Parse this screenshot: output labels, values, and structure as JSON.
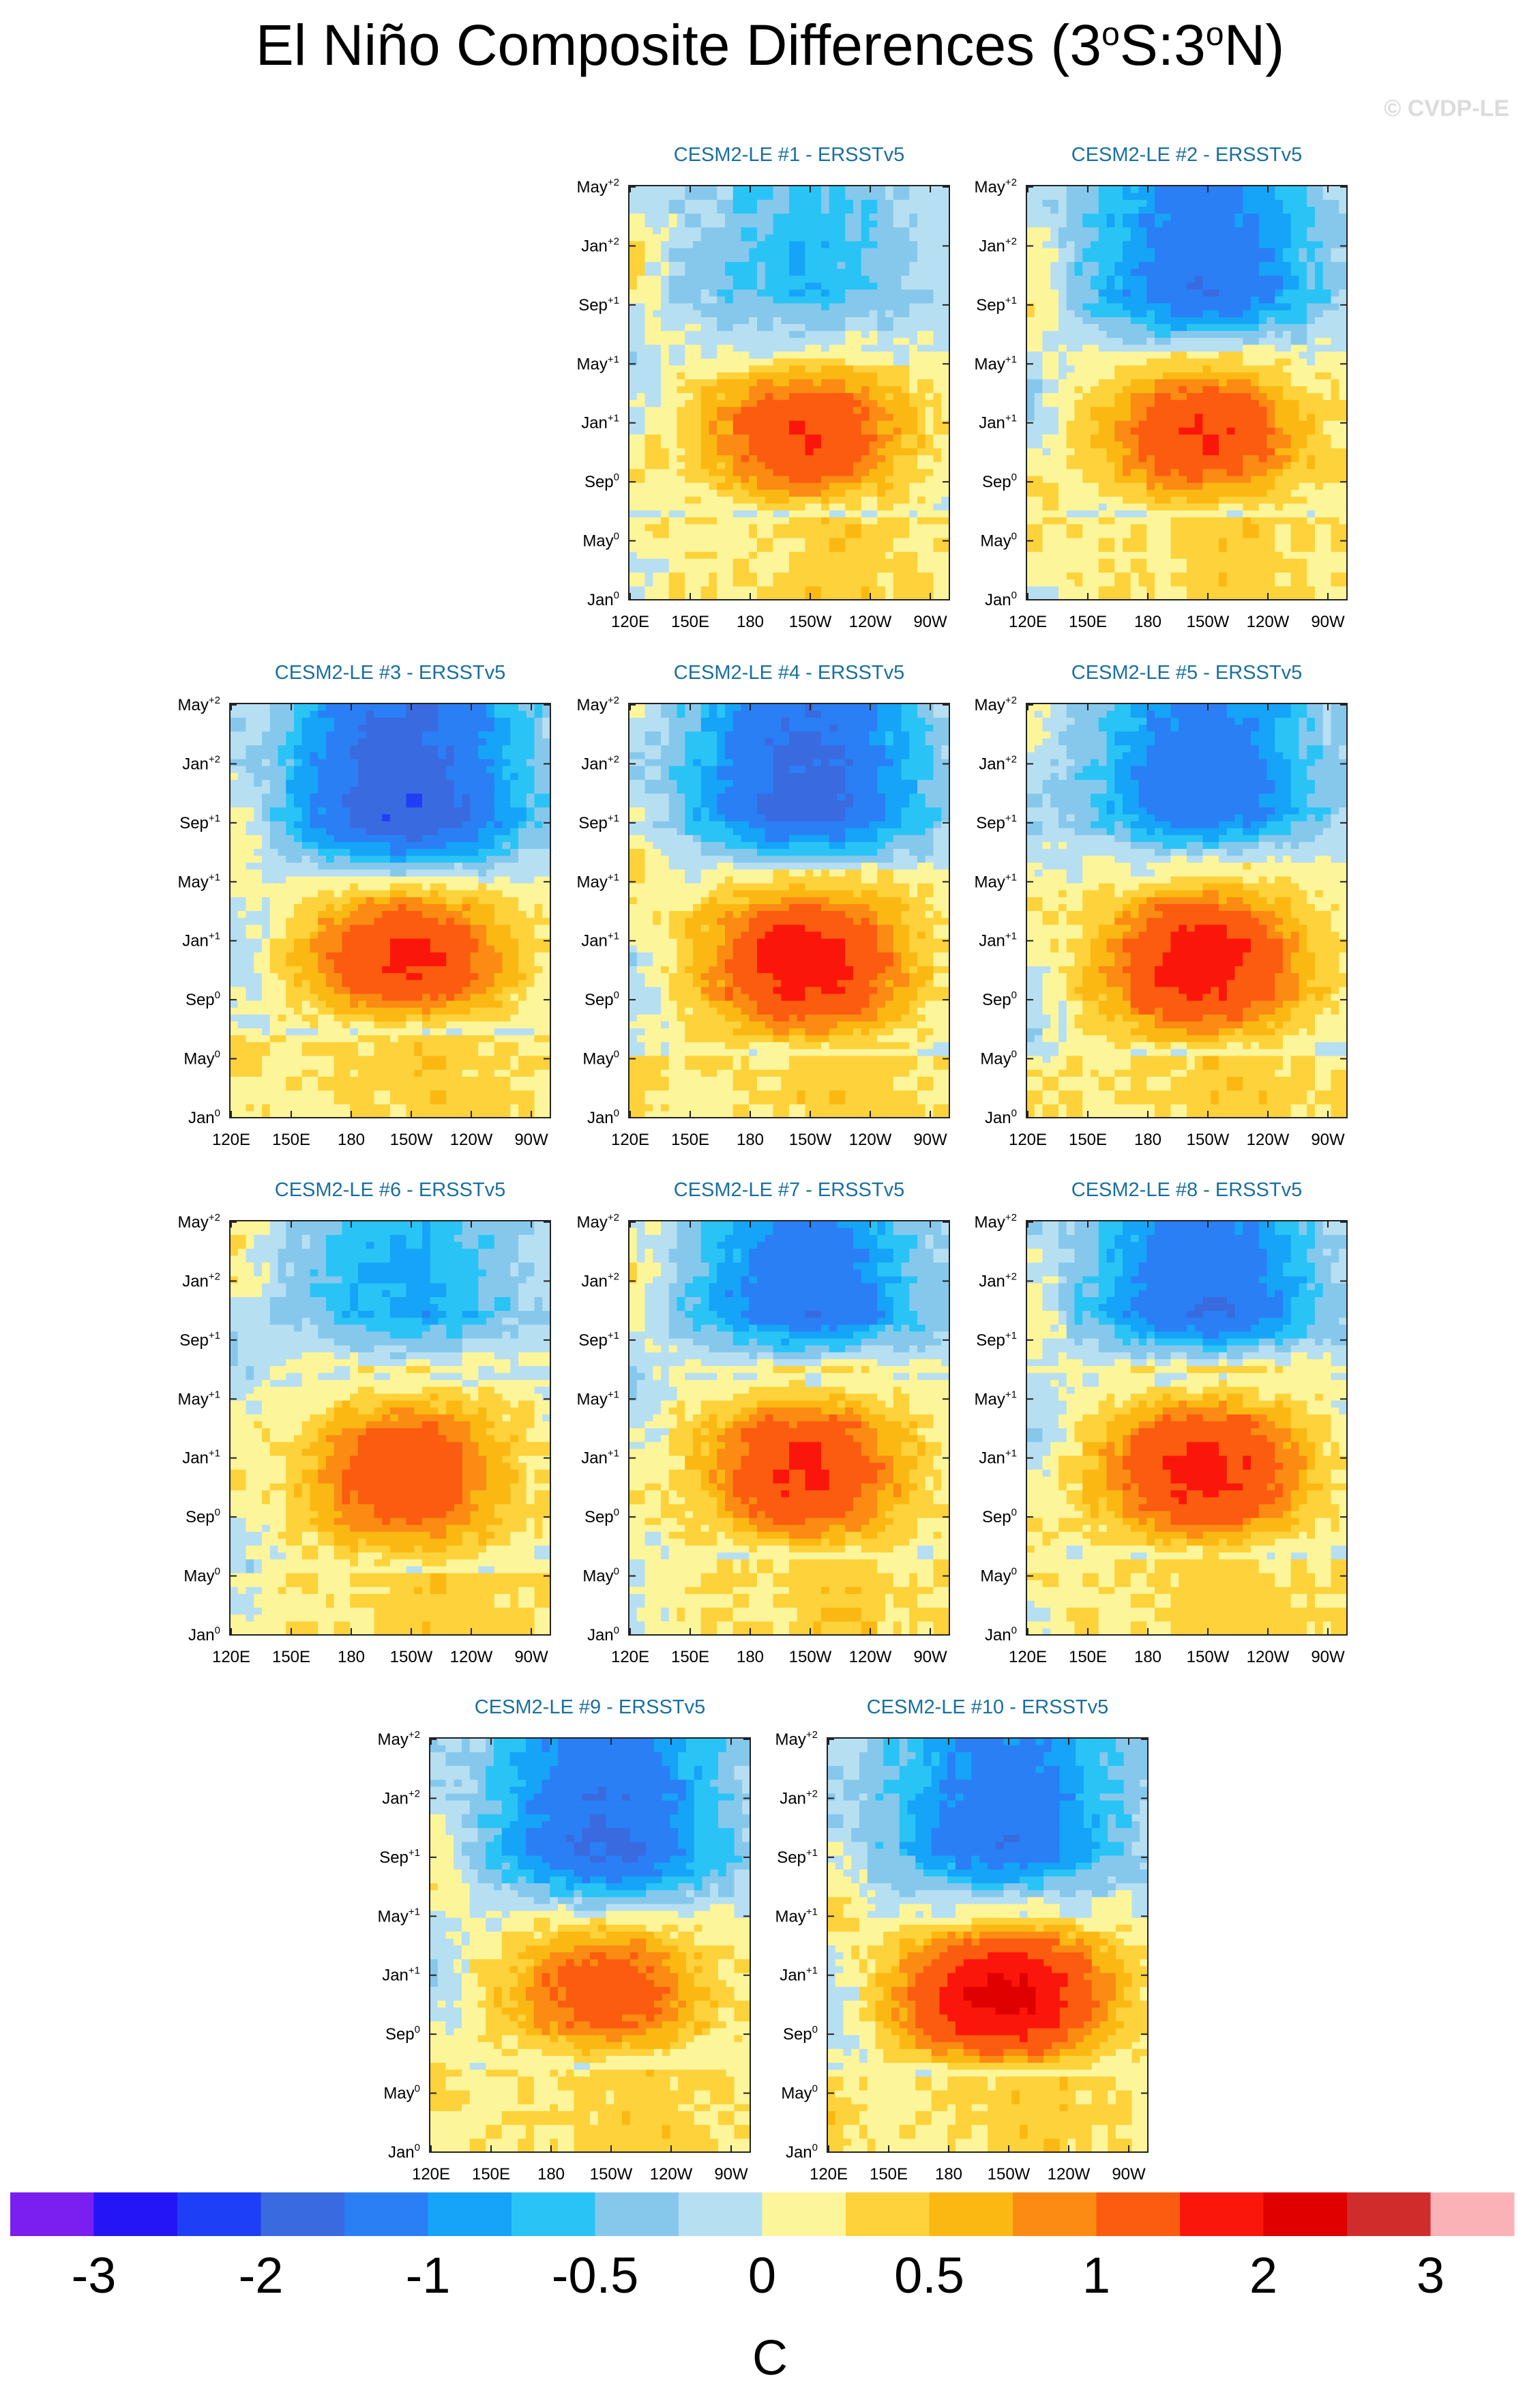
{
  "title": {
    "text": "El Niño Composite Differences (3",
    "sup1": "o",
    "mid": "S:3",
    "sup2": "o",
    "end": "N)"
  },
  "watermark": "© CVDP-LE",
  "colorbar": {
    "colors": [
      "#7a1ff0",
      "#2415f7",
      "#1d3ff5",
      "#3a6ae0",
      "#2a7ff5",
      "#15a4f7",
      "#29c4f5",
      "#86c8ec",
      "#b7dff2",
      "#fcf59a",
      "#fdd23a",
      "#fbb813",
      "#fb8b12",
      "#fb5c0f",
      "#fb160b",
      "#e00000",
      "#d12c2c",
      "#fbb2b7"
    ],
    "labels": [
      "-3",
      "-2",
      "-1",
      "-0.5",
      "0",
      "0.5",
      "1",
      "2",
      "3"
    ],
    "unit": "C"
  },
  "chart_data": [
    {
      "type": "heatmap",
      "title": "CESM2-LE #1 - ERSSTv5",
      "x_ticks": [
        "120E",
        "150E",
        "180",
        "150W",
        "120W",
        "90W"
      ],
      "y_ticks": [
        "Jan",
        "May",
        "Sep",
        "Jan",
        "May",
        "Sep",
        "Jan",
        "May"
      ],
      "y_sups": [
        "0",
        "0",
        "0",
        "+1",
        "+1",
        "+1",
        "+2",
        "+2"
      ],
      "warm_peak": 1.5,
      "cold_peak": -0.8,
      "warm_phase": [
        0.2,
        0.6
      ],
      "cold_phase": [
        0.62,
        1.0
      ]
    },
    {
      "type": "heatmap",
      "title": "CESM2-LE #2 - ERSSTv5",
      "x_ticks": [
        "120E",
        "150E",
        "180",
        "150W",
        "120W",
        "90W"
      ],
      "y_ticks": [
        "Jan",
        "May",
        "Sep",
        "Jan",
        "May",
        "Sep",
        "Jan",
        "May"
      ],
      "y_sups": [
        "0",
        "0",
        "0",
        "+1",
        "+1",
        "+1",
        "+2",
        "+2"
      ],
      "warm_peak": 1.5,
      "cold_peak": -1.6,
      "warm_phase": [
        0.2,
        0.6
      ],
      "cold_phase": [
        0.6,
        1.0
      ]
    },
    {
      "type": "heatmap",
      "title": "CESM2-LE #3 - ERSSTv5",
      "x_ticks": [
        "120E",
        "150E",
        "180",
        "150W",
        "120W",
        "90W"
      ],
      "y_ticks": [
        "Jan",
        "May",
        "Sep",
        "Jan",
        "May",
        "Sep",
        "Jan",
        "May"
      ],
      "y_sups": [
        "0",
        "0",
        "0",
        "+1",
        "+1",
        "+1",
        "+2",
        "+2"
      ],
      "warm_peak": 1.6,
      "cold_peak": -2.2,
      "warm_phase": [
        0.2,
        0.58
      ],
      "cold_phase": [
        0.58,
        1.0
      ]
    },
    {
      "type": "heatmap",
      "title": "CESM2-LE #4 - ERSSTv5",
      "x_ticks": [
        "120E",
        "150E",
        "180",
        "150W",
        "120W",
        "90W"
      ],
      "y_ticks": [
        "Jan",
        "May",
        "Sep",
        "Jan",
        "May",
        "Sep",
        "Jan",
        "May"
      ],
      "y_sups": [
        "0",
        "0",
        "0",
        "+1",
        "+1",
        "+1",
        "+2",
        "+2"
      ],
      "warm_peak": 1.8,
      "cold_peak": -2.0,
      "warm_phase": [
        0.15,
        0.6
      ],
      "cold_phase": [
        0.6,
        1.0
      ]
    },
    {
      "type": "heatmap",
      "title": "CESM2-LE #5 - ERSSTv5",
      "x_ticks": [
        "120E",
        "150E",
        "180",
        "150W",
        "120W",
        "90W"
      ],
      "y_ticks": [
        "Jan",
        "May",
        "Sep",
        "Jan",
        "May",
        "Sep",
        "Jan",
        "May"
      ],
      "y_sups": [
        "0",
        "0",
        "0",
        "+1",
        "+1",
        "+1",
        "+2",
        "+2"
      ],
      "warm_peak": 1.8,
      "cold_peak": -1.6,
      "warm_phase": [
        0.15,
        0.6
      ],
      "cold_phase": [
        0.62,
        1.0
      ]
    },
    {
      "type": "heatmap",
      "title": "CESM2-LE #6 - ERSSTv5",
      "x_ticks": [
        "120E",
        "150E",
        "180",
        "150W",
        "120W",
        "90W"
      ],
      "y_ticks": [
        "Jan",
        "May",
        "Sep",
        "Jan",
        "May",
        "Sep",
        "Jan",
        "May"
      ],
      "y_sups": [
        "0",
        "0",
        "0",
        "+1",
        "+1",
        "+1",
        "+2",
        "+2"
      ],
      "warm_peak": 1.4,
      "cold_peak": -1.0,
      "warm_phase": [
        0.15,
        0.62
      ],
      "cold_phase": [
        0.66,
        1.0
      ]
    },
    {
      "type": "heatmap",
      "title": "CESM2-LE #7 - ERSSTv5",
      "x_ticks": [
        "120E",
        "150E",
        "180",
        "150W",
        "120W",
        "90W"
      ],
      "y_ticks": [
        "Jan",
        "May",
        "Sep",
        "Jan",
        "May",
        "Sep",
        "Jan",
        "May"
      ],
      "y_sups": [
        "0",
        "0",
        "0",
        "+1",
        "+1",
        "+1",
        "+2",
        "+2"
      ],
      "warm_peak": 1.6,
      "cold_peak": -1.6,
      "warm_phase": [
        0.18,
        0.62
      ],
      "cold_phase": [
        0.66,
        1.0
      ]
    },
    {
      "type": "heatmap",
      "title": "CESM2-LE #8 - ERSSTv5",
      "x_ticks": [
        "120E",
        "150E",
        "180",
        "150W",
        "120W",
        "90W"
      ],
      "y_ticks": [
        "Jan",
        "May",
        "Sep",
        "Jan",
        "May",
        "Sep",
        "Jan",
        "May"
      ],
      "y_sups": [
        "0",
        "0",
        "0",
        "+1",
        "+1",
        "+1",
        "+2",
        "+2"
      ],
      "warm_peak": 1.7,
      "cold_peak": -1.7,
      "warm_phase": [
        0.18,
        0.62
      ],
      "cold_phase": [
        0.66,
        1.0
      ]
    },
    {
      "type": "heatmap",
      "title": "CESM2-LE #9 - ERSSTv5",
      "x_ticks": [
        "120E",
        "150E",
        "180",
        "150W",
        "120W",
        "90W"
      ],
      "y_ticks": [
        "Jan",
        "May",
        "Sep",
        "Jan",
        "May",
        "Sep",
        "Jan",
        "May"
      ],
      "y_sups": [
        "0",
        "0",
        "0",
        "+1",
        "+1",
        "+1",
        "+2",
        "+2"
      ],
      "warm_peak": 1.3,
      "cold_peak": -1.8,
      "warm_phase": [
        0.2,
        0.58
      ],
      "cold_phase": [
        0.58,
        1.0
      ]
    },
    {
      "type": "heatmap",
      "title": "CESM2-LE #10 - ERSSTv5",
      "x_ticks": [
        "120E",
        "150E",
        "180",
        "150W",
        "120W",
        "90W"
      ],
      "y_ticks": [
        "Jan",
        "May",
        "Sep",
        "Jan",
        "May",
        "Sep",
        "Jan",
        "May"
      ],
      "y_sups": [
        "0",
        "0",
        "0",
        "+1",
        "+1",
        "+1",
        "+2",
        "+2"
      ],
      "warm_peak": 2.2,
      "cold_peak": -1.6,
      "warm_phase": [
        0.18,
        0.58
      ],
      "cold_phase": [
        0.6,
        1.0
      ]
    }
  ]
}
